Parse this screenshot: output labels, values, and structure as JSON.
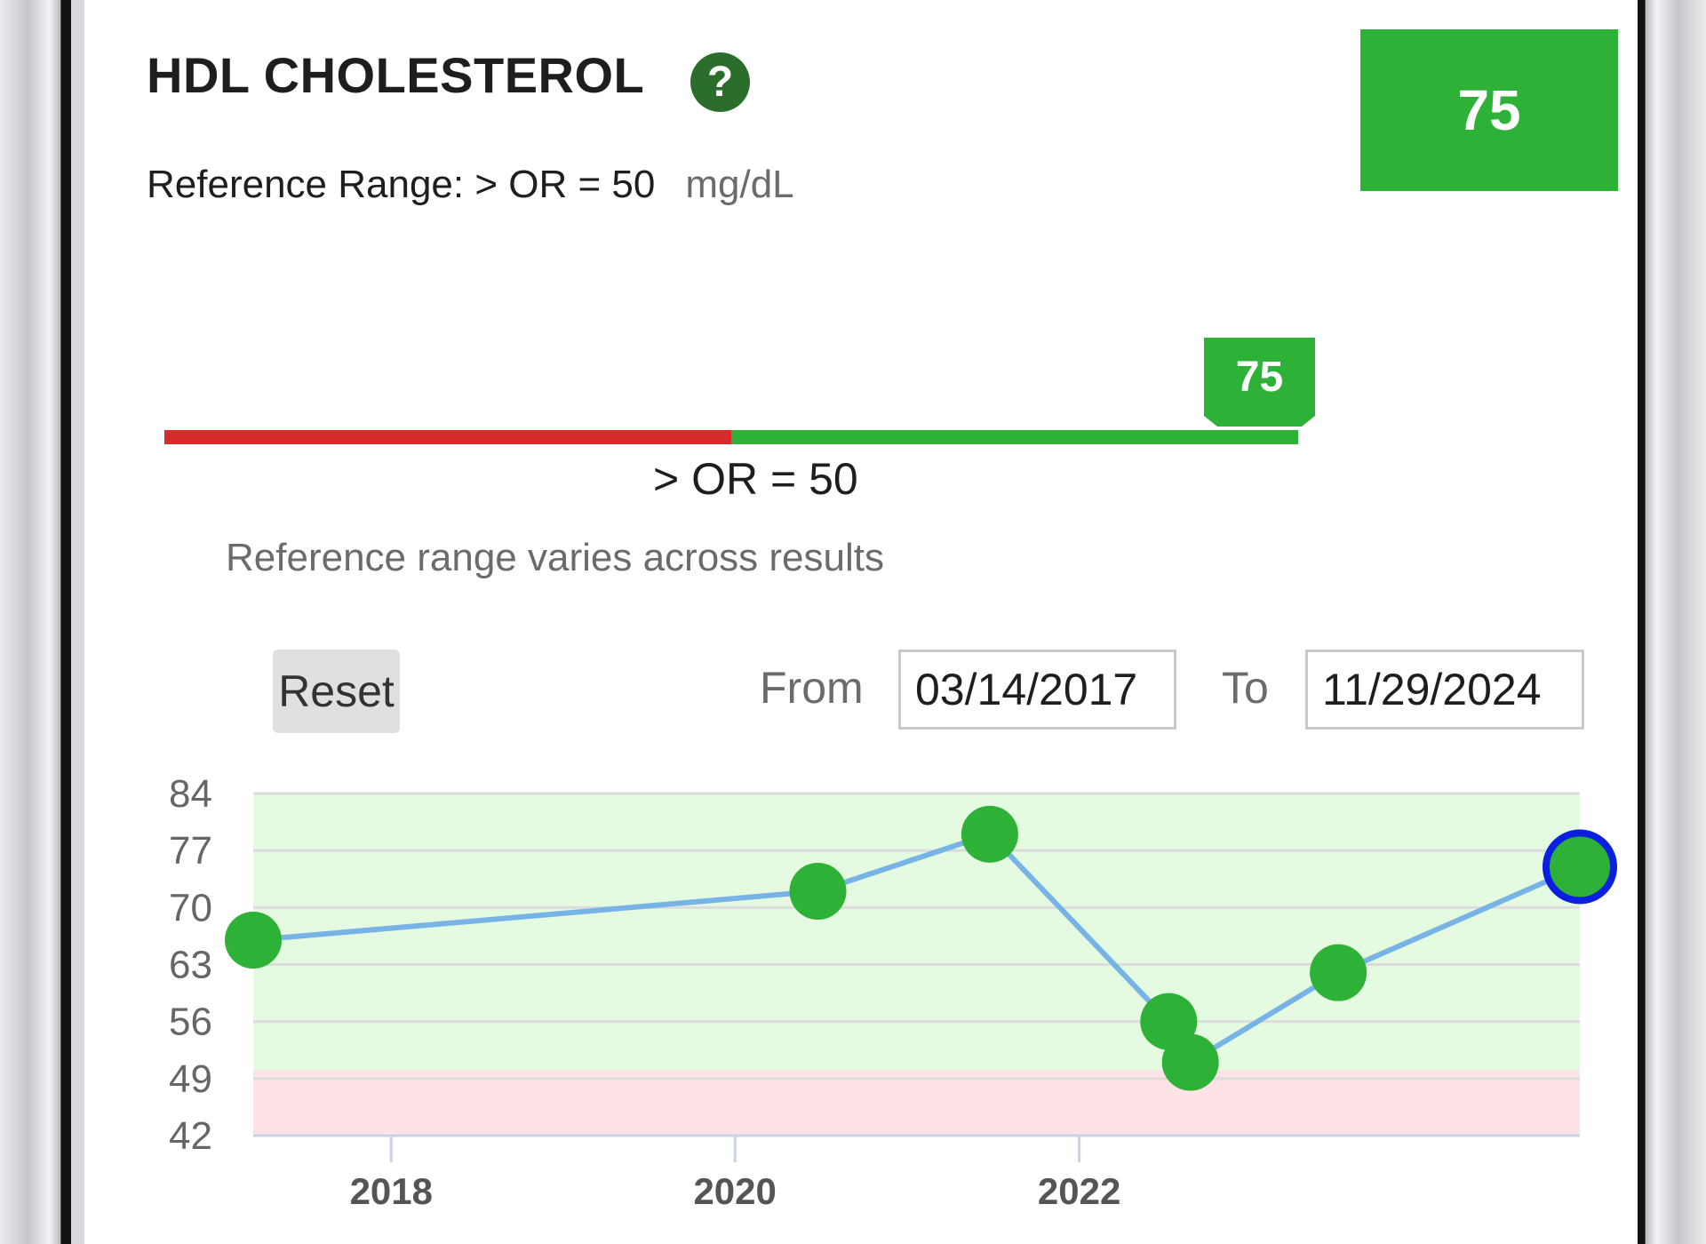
{
  "header": {
    "title": "HDL CHOLESTEROL",
    "help_icon": "?",
    "current_value": "75"
  },
  "reference": {
    "prefix": "Reference Range: > OR = 50",
    "unit": "mg/dL",
    "range_label": "> OR = 50",
    "marker_value": "75",
    "note": "Reference range varies across results"
  },
  "controls": {
    "reset_label": "Reset",
    "from_label": "From",
    "from_date": "03/14/2017",
    "to_label": "To",
    "to_date": "11/29/2024"
  },
  "colors": {
    "normal": "#2db136",
    "abnormal": "#d72b2b",
    "normal_band": "#e4fbe2",
    "abnormal_band": "#fde3e5",
    "line": "#78b3e6",
    "selected_ring": "#0a1fe0"
  },
  "chart_data": {
    "type": "line",
    "title": "",
    "xlabel": "",
    "ylabel": "",
    "y_ticks": [
      84,
      77,
      70,
      63,
      56,
      49,
      42
    ],
    "ylim": [
      42,
      84
    ],
    "x_ticks": [
      "2018",
      "2020",
      "2022"
    ],
    "xlim": [
      "2017-03-14",
      "2024-11-29"
    ],
    "normal_threshold": 50,
    "grid": true,
    "series": [
      {
        "points": [
          {
            "x": "2017-03-14",
            "y": 66
          },
          {
            "x": "2020-06-25",
            "y": 72
          },
          {
            "x": "2021-06-25",
            "y": 79
          },
          {
            "x": "2022-07-10",
            "y": 56
          },
          {
            "x": "2022-08-25",
            "y": 51
          },
          {
            "x": "2023-07-05",
            "y": 62
          },
          {
            "x": "2024-11-29",
            "y": 75
          }
        ]
      }
    ],
    "selected_index": 6
  }
}
